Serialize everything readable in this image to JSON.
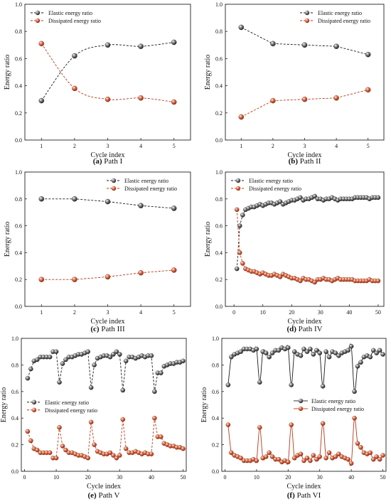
{
  "colors": {
    "elastic": "#3a3a3a",
    "dissipated": "#c24a2e",
    "elastic_line": "#1a1a1a",
    "dissipated_line": "#b5381c"
  },
  "chart_data": [
    {
      "type": "line",
      "panel": "a",
      "caption_prefix": "(a)",
      "caption_text": "Path I",
      "xlabel": "Cycle index",
      "ylabel": "Energy ratio",
      "xlim": [
        0.5,
        5.5
      ],
      "ylim": [
        0,
        1.0
      ],
      "xticks": [
        1,
        2,
        3,
        4,
        5
      ],
      "yticks": [
        0.0,
        0.2,
        0.4,
        0.6,
        0.8,
        1.0
      ],
      "legend_position": "top-left",
      "smooth": true,
      "series": [
        {
          "name": "Elastic energy ratio",
          "role": "elastic",
          "x": [
            1,
            2,
            3,
            4,
            5
          ],
          "y": [
            0.29,
            0.62,
            0.7,
            0.69,
            0.72
          ]
        },
        {
          "name": "Dissipated energy ratio",
          "role": "dissipated",
          "x": [
            1,
            2,
            3,
            4,
            5
          ],
          "y": [
            0.71,
            0.38,
            0.3,
            0.31,
            0.28
          ]
        }
      ]
    },
    {
      "type": "line",
      "panel": "b",
      "caption_prefix": "(b)",
      "caption_text": "Path II",
      "xlabel": "Cycle index",
      "ylabel": "Energy ratio",
      "xlim": [
        0.5,
        5.5
      ],
      "ylim": [
        0,
        1.0
      ],
      "xticks": [
        1,
        2,
        3,
        4,
        5
      ],
      "yticks": [
        0.0,
        0.2,
        0.4,
        0.6,
        0.8,
        1.0
      ],
      "legend_position": "top-right",
      "smooth": false,
      "series": [
        {
          "name": "Elastic energy ratio",
          "role": "elastic",
          "x": [
            1,
            2,
            3,
            4,
            5
          ],
          "y": [
            0.83,
            0.71,
            0.7,
            0.69,
            0.63
          ]
        },
        {
          "name": "Dissipated energy ratio",
          "role": "dissipated",
          "x": [
            1,
            2,
            3,
            4,
            5
          ],
          "y": [
            0.17,
            0.29,
            0.3,
            0.31,
            0.37
          ]
        }
      ]
    },
    {
      "type": "line",
      "panel": "c",
      "caption_prefix": "(c)",
      "caption_text": "Path III",
      "xlabel": "Cycle index",
      "ylabel": "Energy ratio",
      "xlim": [
        0.5,
        5.5
      ],
      "ylim": [
        0,
        1.0
      ],
      "xticks": [
        1,
        2,
        3,
        4,
        5
      ],
      "yticks": [
        0.0,
        0.2,
        0.4,
        0.6,
        0.8,
        1.0
      ],
      "legend_position": "top-right",
      "smooth": false,
      "series": [
        {
          "name": "Elastic energy ratio",
          "role": "elastic",
          "x": [
            1,
            2,
            3,
            4,
            5
          ],
          "y": [
            0.8,
            0.8,
            0.78,
            0.75,
            0.73
          ]
        },
        {
          "name": "Dissipated energy ratio",
          "role": "dissipated",
          "x": [
            1,
            2,
            3,
            4,
            5
          ],
          "y": [
            0.2,
            0.2,
            0.22,
            0.25,
            0.27
          ]
        }
      ]
    },
    {
      "type": "line",
      "panel": "d",
      "caption_prefix": "(d)",
      "caption_text": "Path IV",
      "xlabel": "Cycle index",
      "ylabel": "Energy ratio",
      "xlim": [
        -3,
        52
      ],
      "ylim": [
        0,
        1.0
      ],
      "xticks": [
        0,
        10,
        20,
        30,
        40,
        50
      ],
      "yticks": [
        0.0,
        0.2,
        0.4,
        0.6,
        0.8,
        1.0
      ],
      "legend_position": "top-left",
      "smooth": false,
      "series": [
        {
          "name": "Elastic energy ratio",
          "role": "elastic",
          "x": [
            1,
            2,
            3,
            4,
            5,
            6,
            7,
            8,
            9,
            10,
            11,
            12,
            13,
            14,
            15,
            16,
            17,
            18,
            19,
            20,
            21,
            22,
            23,
            24,
            25,
            26,
            27,
            28,
            29,
            30,
            31,
            32,
            33,
            34,
            35,
            36,
            37,
            38,
            39,
            40,
            41,
            42,
            43,
            44,
            45,
            46,
            47,
            48,
            49,
            50
          ],
          "y": [
            0.28,
            0.6,
            0.68,
            0.72,
            0.73,
            0.74,
            0.74,
            0.75,
            0.76,
            0.75,
            0.76,
            0.77,
            0.77,
            0.76,
            0.77,
            0.78,
            0.76,
            0.77,
            0.78,
            0.79,
            0.79,
            0.8,
            0.81,
            0.79,
            0.8,
            0.8,
            0.81,
            0.82,
            0.8,
            0.8,
            0.79,
            0.8,
            0.8,
            0.81,
            0.8,
            0.79,
            0.8,
            0.8,
            0.8,
            0.8,
            0.8,
            0.81,
            0.81,
            0.81,
            0.81,
            0.81,
            0.8,
            0.81,
            0.81,
            0.81
          ]
        },
        {
          "name": "Dissipated energy ratio",
          "role": "dissipated",
          "x": [
            1,
            2,
            3,
            4,
            5,
            6,
            7,
            8,
            9,
            10,
            11,
            12,
            13,
            14,
            15,
            16,
            17,
            18,
            19,
            20,
            21,
            22,
            23,
            24,
            25,
            26,
            27,
            28,
            29,
            30,
            31,
            32,
            33,
            34,
            35,
            36,
            37,
            38,
            39,
            40,
            41,
            42,
            43,
            44,
            45,
            46,
            47,
            48,
            49,
            50
          ],
          "y": [
            0.72,
            0.4,
            0.32,
            0.28,
            0.27,
            0.26,
            0.26,
            0.25,
            0.24,
            0.25,
            0.24,
            0.23,
            0.23,
            0.24,
            0.23,
            0.22,
            0.24,
            0.23,
            0.22,
            0.21,
            0.21,
            0.2,
            0.19,
            0.21,
            0.2,
            0.2,
            0.19,
            0.18,
            0.2,
            0.2,
            0.21,
            0.2,
            0.2,
            0.19,
            0.2,
            0.21,
            0.2,
            0.2,
            0.2,
            0.2,
            0.2,
            0.19,
            0.19,
            0.19,
            0.19,
            0.19,
            0.2,
            0.19,
            0.19,
            0.19
          ]
        }
      ]
    },
    {
      "type": "line",
      "panel": "e",
      "caption_prefix": "(e)",
      "caption_text": "Path V",
      "xlabel": "Cycle index",
      "ylabel": "Energy ratio",
      "xlim": [
        -1,
        51
      ],
      "ylim": [
        0,
        1.0
      ],
      "xticks": [
        0,
        10,
        20,
        30,
        40,
        50
      ],
      "yticks": [
        0.0,
        0.2,
        0.4,
        0.6,
        0.8,
        1.0
      ],
      "legend_position": "middle-left",
      "smooth": false,
      "series": [
        {
          "name": "Elastic energy ratio",
          "role": "elastic",
          "x": [
            1,
            2,
            3,
            4,
            5,
            6,
            7,
            8,
            9,
            10,
            11,
            12,
            13,
            14,
            15,
            16,
            17,
            18,
            19,
            20,
            21,
            22,
            23,
            24,
            25,
            26,
            27,
            28,
            29,
            30,
            31,
            32,
            33,
            34,
            35,
            36,
            37,
            38,
            39,
            40,
            41,
            42,
            43,
            44,
            45,
            46,
            47,
            48,
            49,
            50
          ],
          "y": [
            0.7,
            0.77,
            0.83,
            0.84,
            0.86,
            0.86,
            0.86,
            0.86,
            0.9,
            0.9,
            0.67,
            0.81,
            0.84,
            0.86,
            0.86,
            0.87,
            0.88,
            0.88,
            0.89,
            0.9,
            0.63,
            0.8,
            0.85,
            0.86,
            0.87,
            0.87,
            0.86,
            0.88,
            0.9,
            0.88,
            0.61,
            0.83,
            0.86,
            0.86,
            0.85,
            0.86,
            0.87,
            0.86,
            0.87,
            0.87,
            0.6,
            0.74,
            0.74,
            0.79,
            0.8,
            0.81,
            0.81,
            0.82,
            0.82,
            0.83
          ]
        },
        {
          "name": "Dissipated energy ratio",
          "role": "dissipated",
          "x": [
            1,
            2,
            3,
            4,
            5,
            6,
            7,
            8,
            9,
            10,
            11,
            12,
            13,
            14,
            15,
            16,
            17,
            18,
            19,
            20,
            21,
            22,
            23,
            24,
            25,
            26,
            27,
            28,
            29,
            30,
            31,
            32,
            33,
            34,
            35,
            36,
            37,
            38,
            39,
            40,
            41,
            42,
            43,
            44,
            45,
            46,
            47,
            48,
            49,
            50
          ],
          "y": [
            0.3,
            0.23,
            0.17,
            0.16,
            0.14,
            0.14,
            0.14,
            0.14,
            0.1,
            0.1,
            0.33,
            0.19,
            0.16,
            0.14,
            0.14,
            0.13,
            0.12,
            0.12,
            0.11,
            0.1,
            0.37,
            0.2,
            0.15,
            0.14,
            0.13,
            0.13,
            0.14,
            0.12,
            0.1,
            0.12,
            0.39,
            0.17,
            0.14,
            0.14,
            0.15,
            0.14,
            0.13,
            0.14,
            0.13,
            0.13,
            0.4,
            0.26,
            0.26,
            0.21,
            0.2,
            0.19,
            0.19,
            0.18,
            0.18,
            0.17
          ]
        }
      ]
    },
    {
      "type": "line",
      "panel": "f",
      "caption_prefix": "(f)",
      "caption_text": "Path VI",
      "xlabel": "Cycle index",
      "ylabel": "Energy ratio",
      "xlim": [
        -1,
        51
      ],
      "ylim": [
        0,
        1.0
      ],
      "xticks": [
        0,
        10,
        20,
        30,
        40,
        50
      ],
      "yticks": [
        0.0,
        0.2,
        0.4,
        0.6,
        0.8,
        1.0
      ],
      "legend_position": "middle-right",
      "smooth": true,
      "series": [
        {
          "name": "Elastic energy ratio",
          "role": "elastic",
          "x": [
            1,
            2,
            3,
            4,
            5,
            6,
            7,
            8,
            9,
            10,
            11,
            12,
            13,
            14,
            15,
            16,
            17,
            18,
            19,
            20,
            21,
            22,
            23,
            24,
            25,
            26,
            27,
            28,
            29,
            30,
            31,
            32,
            33,
            34,
            35,
            36,
            37,
            38,
            39,
            40,
            41,
            42,
            43,
            44,
            45,
            46,
            47,
            48,
            49,
            50
          ],
          "y": [
            0.65,
            0.86,
            0.88,
            0.89,
            0.9,
            0.92,
            0.92,
            0.92,
            0.91,
            0.92,
            0.67,
            0.9,
            0.89,
            0.86,
            0.89,
            0.91,
            0.91,
            0.93,
            0.92,
            0.93,
            0.65,
            0.9,
            0.88,
            0.87,
            0.92,
            0.9,
            0.92,
            0.88,
            0.91,
            0.89,
            0.64,
            0.9,
            0.86,
            0.9,
            0.89,
            0.87,
            0.89,
            0.9,
            0.91,
            0.94,
            0.6,
            0.79,
            0.82,
            0.86,
            0.87,
            0.86,
            0.91,
            0.89,
            0.91,
            0.88
          ]
        },
        {
          "name": "Dissipated energy ratio",
          "role": "dissipated",
          "x": [
            1,
            2,
            3,
            4,
            5,
            6,
            7,
            8,
            9,
            10,
            11,
            12,
            13,
            14,
            15,
            16,
            17,
            18,
            19,
            20,
            21,
            22,
            23,
            24,
            25,
            26,
            27,
            28,
            29,
            30,
            31,
            32,
            33,
            34,
            35,
            36,
            37,
            38,
            39,
            40,
            41,
            42,
            43,
            44,
            45,
            46,
            47,
            48,
            49,
            50
          ],
          "y": [
            0.35,
            0.14,
            0.12,
            0.11,
            0.1,
            0.08,
            0.08,
            0.08,
            0.09,
            0.08,
            0.33,
            0.1,
            0.11,
            0.14,
            0.11,
            0.09,
            0.09,
            0.07,
            0.08,
            0.07,
            0.35,
            0.1,
            0.12,
            0.13,
            0.08,
            0.1,
            0.08,
            0.12,
            0.09,
            0.11,
            0.36,
            0.1,
            0.14,
            0.1,
            0.11,
            0.13,
            0.11,
            0.1,
            0.09,
            0.06,
            0.4,
            0.21,
            0.18,
            0.14,
            0.13,
            0.14,
            0.09,
            0.11,
            0.09,
            0.12
          ]
        }
      ]
    }
  ]
}
